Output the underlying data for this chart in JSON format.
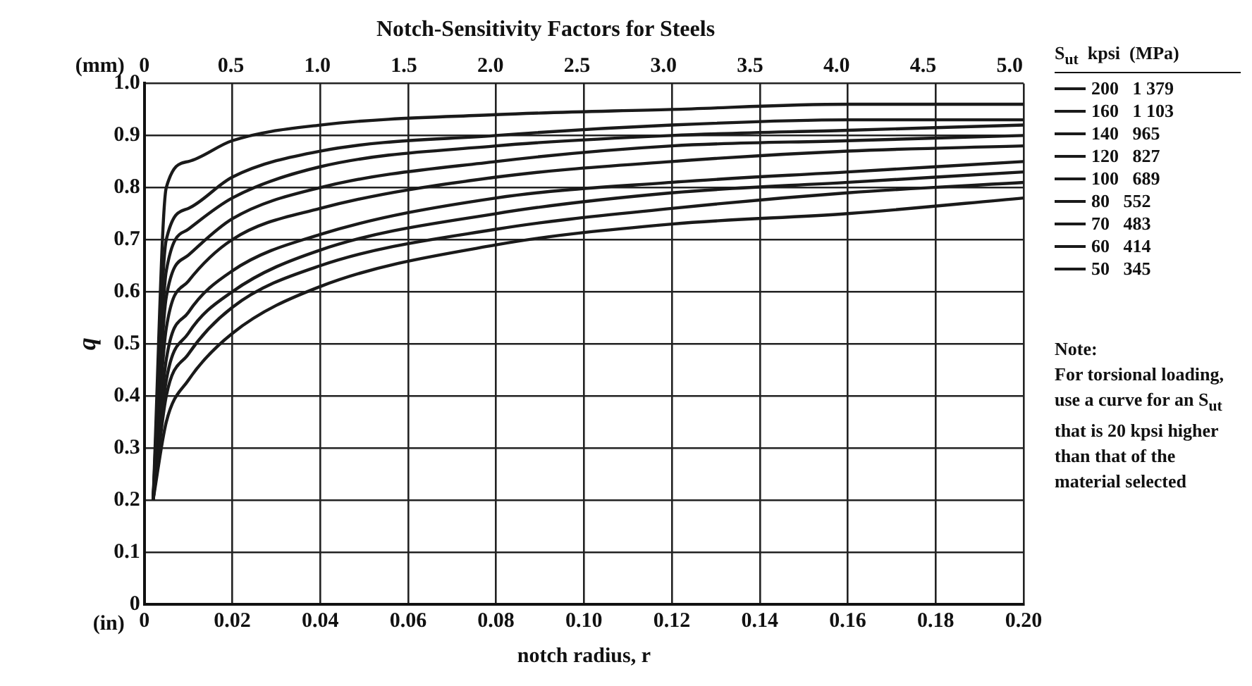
{
  "chart_data": {
    "type": "line",
    "title": "Notch-Sensitivity Factors for Steels",
    "xlabel": "notch radius, r",
    "ylabel": "q",
    "x2label": "(mm)",
    "legend_title": "S$_{ut}$  kpsi  (MPa)",
    "annotations": [
      "(in)",
      "Note:",
      "For torsional loading, use a curve for an S$_{ut}$ that is 20 kpsi higher than that of the material selected"
    ],
    "x": [
      0.002,
      0.005,
      0.01,
      0.02,
      0.04,
      0.08,
      0.12,
      0.16,
      0.2
    ],
    "series": [
      {
        "name": "200   1 379",
        "color": "#1a1a1a",
        "values": [
          0.2,
          0.8,
          0.85,
          0.89,
          0.92,
          0.94,
          0.95,
          0.96,
          0.96
        ]
      },
      {
        "name": "160   1 103",
        "color": "#1a1a1a",
        "values": [
          0.2,
          0.7,
          0.76,
          0.82,
          0.87,
          0.9,
          0.92,
          0.93,
          0.93
        ]
      },
      {
        "name": "140   965",
        "color": "#1a1a1a",
        "values": [
          0.2,
          0.64,
          0.72,
          0.78,
          0.84,
          0.88,
          0.9,
          0.91,
          0.92
        ]
      },
      {
        "name": "120   827",
        "color": "#1a1a1a",
        "values": [
          0.2,
          0.59,
          0.67,
          0.74,
          0.8,
          0.85,
          0.88,
          0.89,
          0.9
        ]
      },
      {
        "name": "100   689",
        "color": "#1a1a1a",
        "values": [
          0.2,
          0.53,
          0.62,
          0.7,
          0.76,
          0.82,
          0.85,
          0.87,
          0.88
        ]
      },
      {
        "name": "80   552",
        "color": "#1a1a1a",
        "values": [
          0.2,
          0.47,
          0.56,
          0.64,
          0.71,
          0.78,
          0.81,
          0.83,
          0.85
        ]
      },
      {
        "name": "70   483",
        "color": "#1a1a1a",
        "values": [
          0.2,
          0.43,
          0.52,
          0.6,
          0.68,
          0.75,
          0.79,
          0.81,
          0.83
        ]
      },
      {
        "name": "60   414",
        "color": "#1a1a1a",
        "values": [
          0.2,
          0.4,
          0.48,
          0.57,
          0.65,
          0.72,
          0.76,
          0.79,
          0.81
        ]
      },
      {
        "name": "50   345",
        "color": "#1a1a1a",
        "values": [
          0.2,
          0.35,
          0.43,
          0.52,
          0.61,
          0.69,
          0.73,
          0.75,
          0.78
        ]
      }
    ],
    "xlim": [
      0,
      0.2
    ],
    "xticks": [
      0,
      0.02,
      0.04,
      0.06,
      0.08,
      {
        "value": 0.1,
        "label": "0.10"
      },
      0.12,
      0.14,
      0.16,
      0.18,
      {
        "value": 0.2,
        "label": "0.20"
      }
    ],
    "x2lim": [
      0,
      5.08
    ],
    "x2ticks": [
      0,
      0.5,
      {
        "value": 1,
        "label": "1.0"
      },
      1.5,
      {
        "value": 2,
        "label": "2.0"
      },
      2.5,
      {
        "value": 3,
        "label": "3.0"
      },
      3.5,
      {
        "value": 4,
        "label": "4.0"
      },
      4.5,
      {
        "value": 5,
        "label": "5.0"
      }
    ],
    "ylim": [
      0,
      1
    ],
    "yticks": [
      0,
      0.1,
      0.2,
      0.3,
      0.4,
      0.5,
      0.6,
      0.7,
      0.8,
      0.9,
      {
        "value": 1,
        "label": "1.0"
      }
    ],
    "grid": true,
    "legend": "right",
    "marker": "none",
    "line_style": "solid"
  }
}
